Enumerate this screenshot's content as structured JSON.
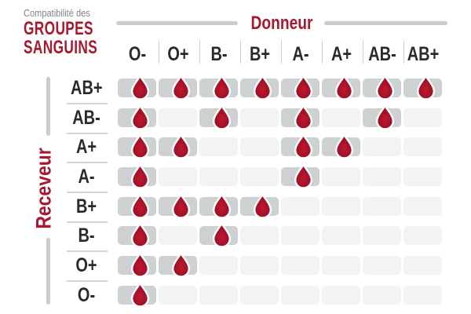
{
  "title": {
    "small": "Compatibilité des",
    "big1": "GROUPES",
    "big2": "SANGUINS"
  },
  "axes": {
    "donor": "Donneur",
    "receiver": "Receveur"
  },
  "icons": {
    "compatible_marker": "blood-drop-icon"
  },
  "colors": {
    "accent_red": "#A6192E",
    "drop_red_center": "#C11830",
    "drop_red_edge": "#8B0F24",
    "cell_filled_gray": "#CED1D2",
    "cell_empty_gray": "#F2F3F3",
    "axis_line_gray": "#C9CDCD",
    "divider_gray": "#CFCFCF",
    "header_text": "#2A2A2A",
    "subtitle_gray": "#808285"
  },
  "chart_data": {
    "type": "heatmap",
    "title": "Compatibilité des GROUPES SANGUINS",
    "x_axis_label": "Donneur",
    "y_axis_label": "Receveur",
    "columns": [
      "O-",
      "O+",
      "B-",
      "B+",
      "A-",
      "A+",
      "AB-",
      "AB+"
    ],
    "rows": [
      "AB+",
      "AB-",
      "A+",
      "A-",
      "B+",
      "B-",
      "O+",
      "O-"
    ],
    "matrix": [
      [
        1,
        1,
        1,
        1,
        1,
        1,
        1,
        1
      ],
      [
        1,
        0,
        1,
        0,
        1,
        0,
        1,
        0
      ],
      [
        1,
        1,
        0,
        0,
        1,
        1,
        0,
        0
      ],
      [
        1,
        0,
        0,
        0,
        1,
        0,
        0,
        0
      ],
      [
        1,
        1,
        1,
        1,
        0,
        0,
        0,
        0
      ],
      [
        1,
        0,
        1,
        0,
        0,
        0,
        0,
        0
      ],
      [
        1,
        1,
        0,
        0,
        0,
        0,
        0,
        0
      ],
      [
        1,
        0,
        0,
        0,
        0,
        0,
        0,
        0
      ]
    ],
    "cell_meaning": "1 = blood-drop icon shown (compatible), 0 = empty gray cell",
    "legend_position": "none",
    "grid": false
  }
}
